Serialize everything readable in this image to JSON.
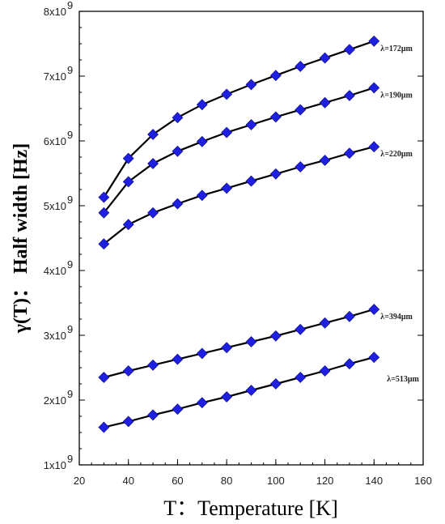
{
  "chart_data": {
    "type": "line",
    "title": "",
    "xlabel": "T：Temperature [K]",
    "ylabel": "γ(T)： Half width [Hz]",
    "xlim": [
      20,
      160
    ],
    "ylim": [
      1000000000,
      8000000000
    ],
    "xticks": [
      20,
      40,
      60,
      80,
      100,
      120,
      140,
      160
    ],
    "yticks": [
      {
        "value": 1000000000,
        "mantissa": "1x10",
        "exp": "9"
      },
      {
        "value": 2000000000,
        "mantissa": "2x10",
        "exp": "9"
      },
      {
        "value": 3000000000,
        "mantissa": "3x10",
        "exp": "9"
      },
      {
        "value": 4000000000,
        "mantissa": "4x10",
        "exp": "9"
      },
      {
        "value": 5000000000,
        "mantissa": "5x10",
        "exp": "9"
      },
      {
        "value": 6000000000,
        "mantissa": "6x10",
        "exp": "9"
      },
      {
        "value": 7000000000,
        "mantissa": "7x10",
        "exp": "9"
      },
      {
        "value": 8000000000,
        "mantissa": "8x10",
        "exp": "9"
      }
    ],
    "grid": false,
    "legend": "none",
    "marker": "diamond",
    "marker_color": "#1f1fe0",
    "line_color": "#000000",
    "x": [
      30,
      40,
      50,
      60,
      70,
      80,
      90,
      100,
      110,
      120,
      130,
      140
    ],
    "series": [
      {
        "name": "λ=172μm",
        "values": [
          5130000000,
          5730000000,
          6100000000,
          6360000000,
          6560000000,
          6720000000,
          6870000000,
          7010000000,
          7150000000,
          7280000000,
          7410000000,
          7540000000
        ]
      },
      {
        "name": "λ=190μm",
        "values": [
          4890000000,
          5370000000,
          5650000000,
          5840000000,
          5990000000,
          6130000000,
          6250000000,
          6370000000,
          6480000000,
          6590000000,
          6700000000,
          6820000000
        ]
      },
      {
        "name": "λ=220μm",
        "values": [
          4410000000,
          4710000000,
          4890000000,
          5030000000,
          5160000000,
          5270000000,
          5380000000,
          5490000000,
          5600000000,
          5700000000,
          5810000000,
          5910000000
        ]
      },
      {
        "name": "λ=394μm",
        "values": [
          2350000000,
          2450000000,
          2540000000,
          2630000000,
          2720000000,
          2810000000,
          2900000000,
          2990000000,
          3090000000,
          3190000000,
          3290000000,
          3400000000
        ]
      },
      {
        "name": "λ=513μm",
        "values": [
          1580000000,
          1670000000,
          1770000000,
          1860000000,
          1960000000,
          2050000000,
          2150000000,
          2250000000,
          2350000000,
          2450000000,
          2560000000,
          2660000000
        ]
      }
    ]
  }
}
